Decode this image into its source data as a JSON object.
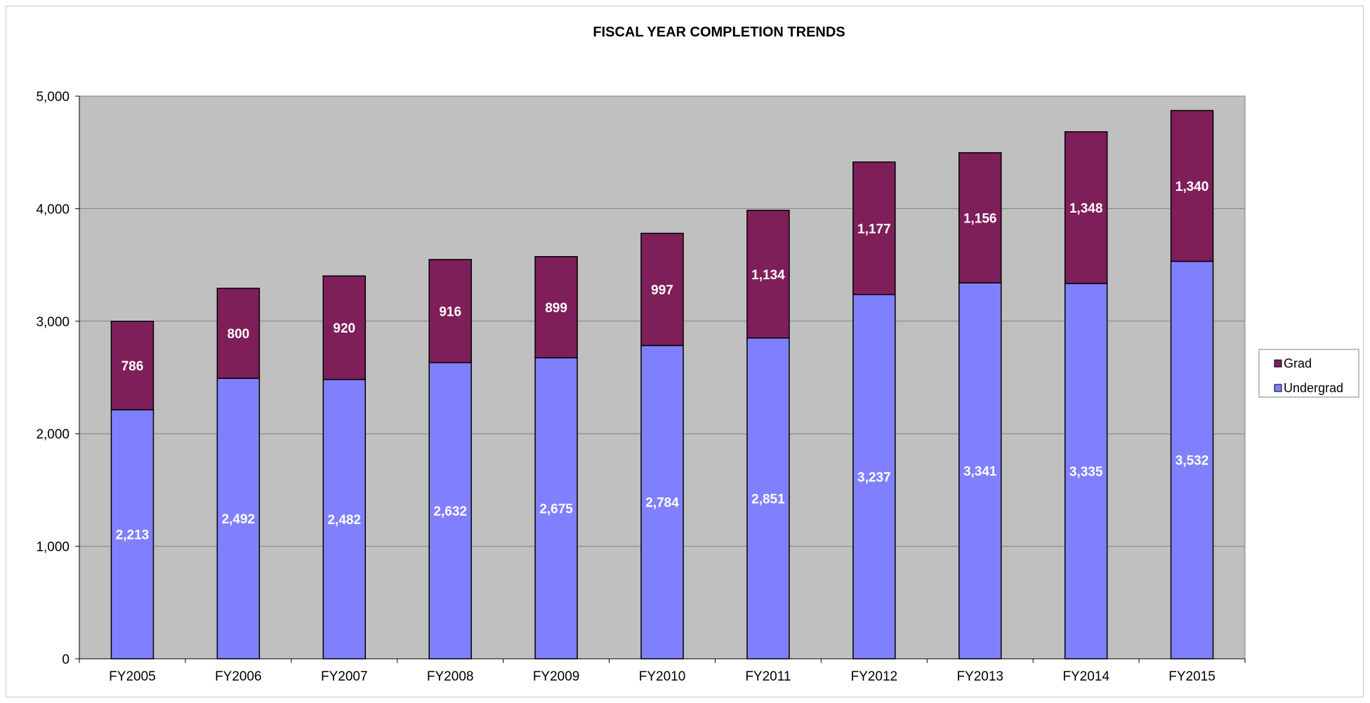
{
  "chart_data": {
    "type": "bar",
    "stacked": true,
    "title": "FISCAL YEAR COMPLETION TRENDS",
    "xlabel": "",
    "ylabel": "",
    "categories": [
      "FY2005",
      "FY2006",
      "FY2007",
      "FY2008",
      "FY2009",
      "FY2010",
      "FY2011",
      "FY2012",
      "FY2013",
      "FY2014",
      "FY2015"
    ],
    "series": [
      {
        "name": "Undergrad",
        "color": "#8080ff",
        "values": [
          2213,
          2492,
          2482,
          2632,
          2675,
          2784,
          2851,
          3237,
          3341,
          3335,
          3532
        ],
        "labels": [
          "2,213",
          "2,492",
          "2,482",
          "2,632",
          "2,675",
          "2,784",
          "2,851",
          "3,237",
          "3,341",
          "3,335",
          "3,532"
        ]
      },
      {
        "name": "Grad",
        "color": "#7f1f5a",
        "values": [
          786,
          800,
          920,
          916,
          899,
          997,
          1134,
          1177,
          1156,
          1348,
          1340
        ],
        "labels": [
          "786",
          "800",
          "920",
          "916",
          "899",
          "997",
          "1,134",
          "1,177",
          "1,156",
          "1,348",
          "1,340"
        ]
      }
    ],
    "ylim": [
      0,
      5000
    ],
    "yticks": [
      0,
      1000,
      2000,
      3000,
      4000,
      5000
    ],
    "ytick_labels": [
      "0",
      "1,000",
      "2,000",
      "3,000",
      "4,000",
      "5,000"
    ],
    "grid": true,
    "plot_background": "#c0c0c0",
    "legend": {
      "placement": "right",
      "entries": [
        "Grad",
        "Undergrad"
      ]
    }
  }
}
